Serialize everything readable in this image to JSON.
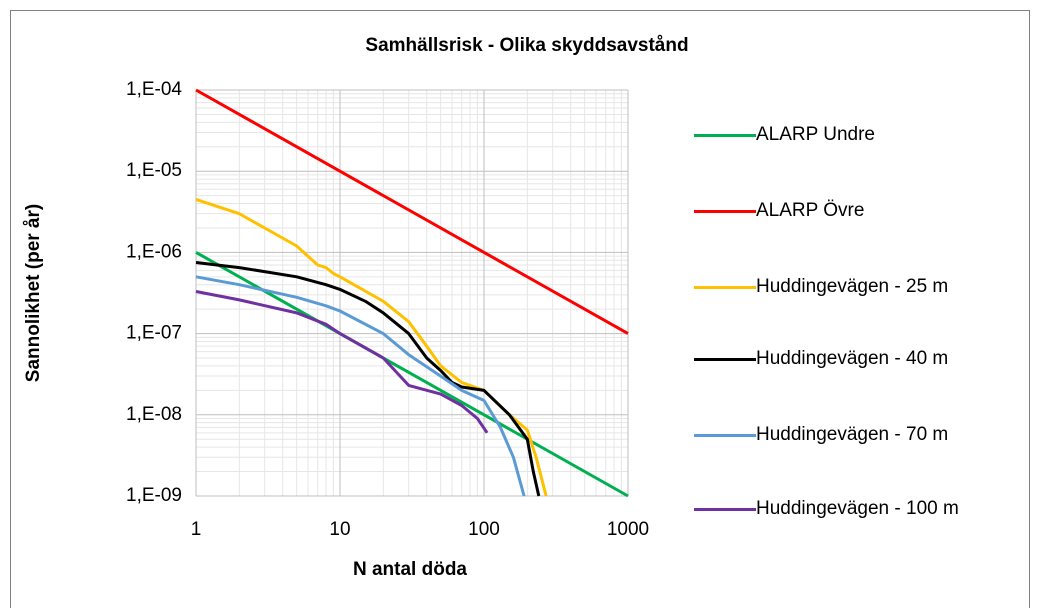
{
  "chart_data": {
    "type": "line",
    "title": "Samhällsrisk - Olika skyddsavstånd",
    "xlabel": "N antal döda",
    "ylabel": "Sannolikhet (per år)",
    "xscale": "log",
    "yscale": "log",
    "grid": true,
    "minor_grid": true,
    "legend": "right",
    "xlim": [
      1,
      1000
    ],
    "xticks": [
      1,
      10,
      100,
      1000
    ],
    "ylim": [
      1e-09,
      0.0001
    ],
    "yticks": [
      {
        "value": 1e-09,
        "label": "1,E-09"
      },
      {
        "value": 1e-08,
        "label": "1,E-08"
      },
      {
        "value": 1e-07,
        "label": "1,E-07"
      },
      {
        "value": 1e-06,
        "label": "1,E-06"
      },
      {
        "value": 1e-05,
        "label": "1,E-05"
      },
      {
        "value": 0.0001,
        "label": "1,E-04"
      }
    ],
    "series": [
      {
        "name": "ALARP Undre",
        "color": "#00b050",
        "x": [
          1,
          1000
        ],
        "values": [
          1e-06,
          1e-09
        ]
      },
      {
        "name": "ALARP Övre",
        "color": "#ff0000",
        "x": [
          1,
          1000
        ],
        "values": [
          0.0001,
          1e-07
        ]
      },
      {
        "name": "Huddingevägen - 25 m",
        "color": "#ffc000",
        "x": [
          1,
          2,
          3,
          5,
          7,
          8,
          9,
          10,
          20,
          30,
          40,
          50,
          70,
          100,
          150,
          200,
          230,
          270
        ],
        "values": [
          4.5e-06,
          3e-06,
          2e-06,
          1.2e-06,
          7e-07,
          6.5e-07,
          5.5e-07,
          5e-07,
          2.5e-07,
          1.4e-07,
          7e-08,
          4e-08,
          2.5e-08,
          2e-08,
          1e-08,
          6.5e-09,
          3e-09,
          1e-09
        ]
      },
      {
        "name": "Huddingevägen - 40 m",
        "color": "#000000",
        "x": [
          1,
          2,
          5,
          8,
          10,
          15,
          20,
          30,
          40,
          50,
          60,
          70,
          100,
          150,
          200,
          220,
          240
        ],
        "values": [
          7.5e-07,
          6.5e-07,
          5e-07,
          4e-07,
          3.5e-07,
          2.5e-07,
          1.8e-07,
          1e-07,
          5e-08,
          3.5e-08,
          2.5e-08,
          2.2e-08,
          2e-08,
          1e-08,
          5e-09,
          2e-09,
          1e-09
        ]
      },
      {
        "name": "Huddingevägen - 70 m",
        "color": "#5b9bd5",
        "x": [
          1,
          2,
          5,
          8,
          10,
          20,
          30,
          50,
          70,
          100,
          130,
          160,
          190
        ],
        "values": [
          5e-07,
          4e-07,
          2.8e-07,
          2.2e-07,
          1.9e-07,
          1e-07,
          5.5e-08,
          3e-08,
          2e-08,
          1.5e-08,
          7e-09,
          3e-09,
          1e-09
        ]
      },
      {
        "name": "Huddingevägen - 100 m",
        "color": "#7030a0",
        "x": [
          1,
          2,
          5,
          8,
          10,
          20,
          30,
          50,
          70,
          90,
          105
        ],
        "values": [
          3.3e-07,
          2.6e-07,
          1.8e-07,
          1.3e-07,
          1e-07,
          5e-08,
          2.3e-08,
          1.8e-08,
          1.3e-08,
          9e-09,
          6e-09
        ]
      }
    ]
  }
}
